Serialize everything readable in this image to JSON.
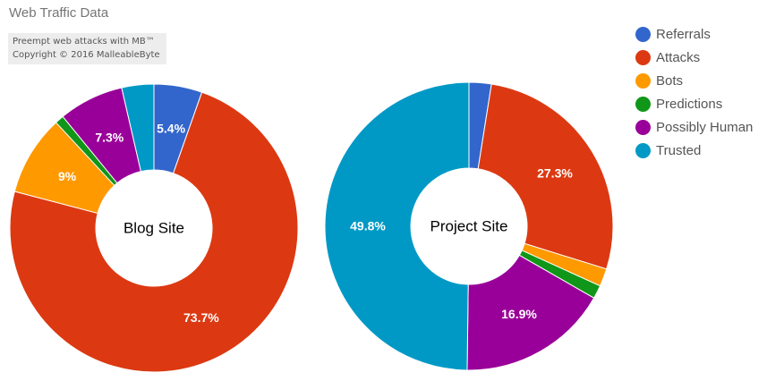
{
  "title": "Web Traffic Data",
  "watermark": {
    "line1": "Preempt web attacks with MB™",
    "line2": "Copyright © 2016 MalleableByte"
  },
  "chart_data": {
    "type": "pie",
    "categories": [
      "Referrals",
      "Attacks",
      "Bots",
      "Predictions",
      "Possibly Human",
      "Trusted"
    ],
    "colors": [
      "#3366cc",
      "#dc3912",
      "#ff9900",
      "#109618",
      "#990099",
      "#0099c6"
    ],
    "legend_position": "right",
    "donut": true,
    "series": [
      {
        "name": "Blog Site",
        "values": [
          5.4,
          73.7,
          9.0,
          1.0,
          7.3,
          3.6
        ],
        "labels": [
          "5.4%",
          "73.7%",
          "9%",
          "",
          "7.3%",
          ""
        ]
      },
      {
        "name": "Project Site",
        "values": [
          2.5,
          27.3,
          2.0,
          1.5,
          16.9,
          49.8
        ],
        "labels": [
          "",
          "27.3%",
          "",
          "",
          "16.9%",
          "49.8%"
        ]
      }
    ]
  }
}
